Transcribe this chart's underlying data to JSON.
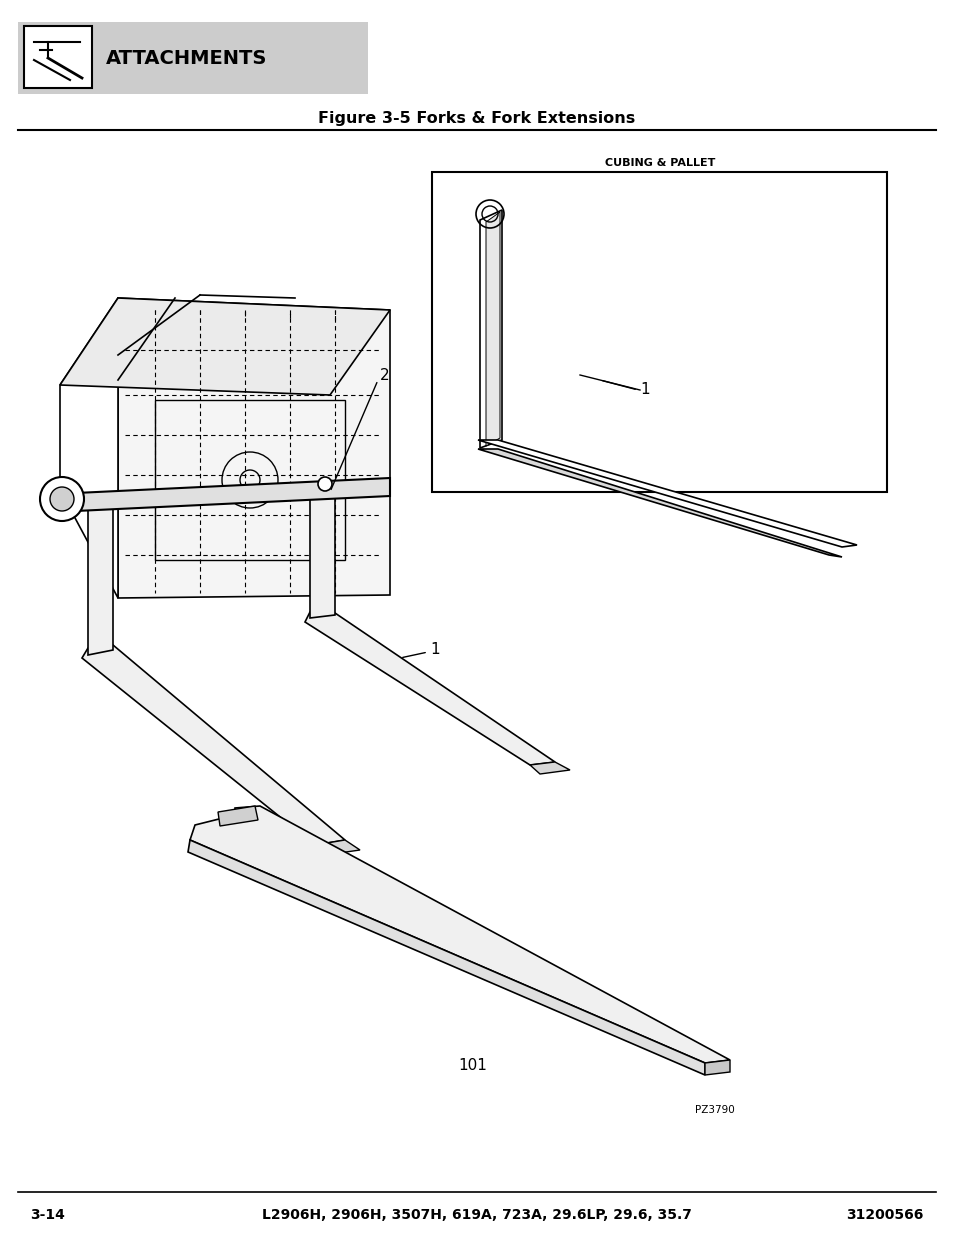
{
  "page_number": "3-14",
  "model_text": "L2906H, 2906H, 3507H, 619A, 723A, 29.6LP, 29.6, 35.7",
  "part_number": "31200566",
  "header_text": "ATTACHMENTS",
  "figure_title": "Figure 3-5 Forks & Fork Extensions",
  "cubing_pallet_label": "CUBING & PALLET",
  "label_1_main": "1",
  "label_1_inset": "1",
  "label_2": "2",
  "label_101": "101",
  "pz_label": "PZ3790",
  "bg_color": "#ffffff",
  "header_bg": "#cccccc",
  "line_color": "#000000"
}
